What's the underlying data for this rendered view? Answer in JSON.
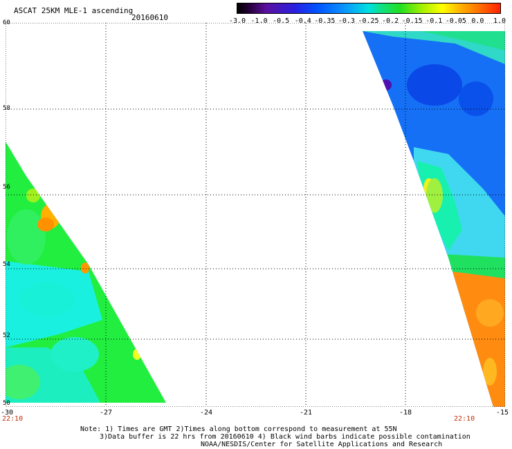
{
  "header": {
    "title": "ASCAT 25KM MLE-1 ascending",
    "date": "20160610"
  },
  "colorbar": {
    "labels": [
      "-3.0",
      "-1.0",
      "-0.5",
      "-0.4",
      "-0.35",
      "-0.3",
      "-0.25",
      "-0.2",
      "-0.15",
      "-0.1",
      "-0.05",
      "0.0",
      "1.0"
    ],
    "colors": [
      "#000000",
      "#2a0040",
      "#5a10a0",
      "#2a20e0",
      "#0050ff",
      "#0a90ff",
      "#00e0e0",
      "#10e080",
      "#20e020",
      "#a0f000",
      "#ffff00",
      "#ffb000",
      "#ff7000",
      "#ff2000"
    ]
  },
  "map": {
    "lat_range": [
      50,
      60
    ],
    "lon_range": [
      -30,
      -15
    ],
    "lat_ticks": [
      "60",
      "58",
      "56",
      "54",
      "52",
      "50"
    ],
    "lon_ticks": [
      "-30",
      "-27",
      "-24",
      "-21",
      "-18",
      "-15"
    ],
    "time_left": "22:10",
    "time_right": "22:10"
  },
  "notes": {
    "line1": "Note: 1) Times are GMT 2)Times along bottom correspond to measurement at 55N",
    "line2": "3)Data buffer is 22 hrs from 20160610 4) Black wind barbs indicate possible contamination",
    "line3": "NOAA/NESDIS/Center for Satellite Applications and Research"
  }
}
